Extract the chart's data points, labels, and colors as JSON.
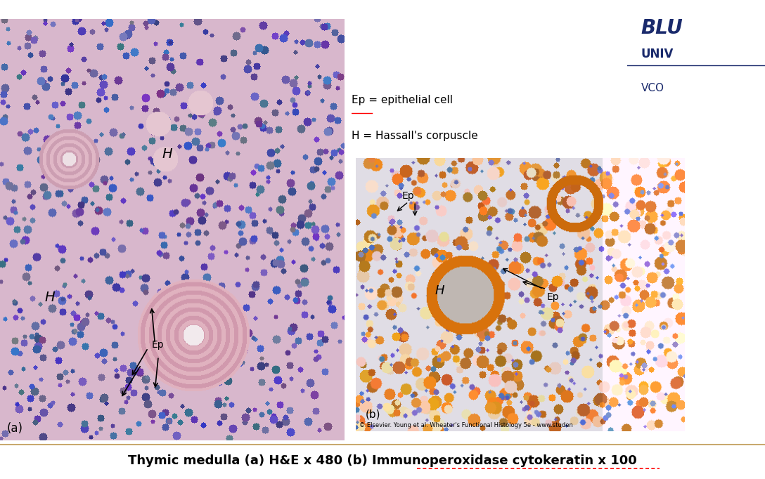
{
  "title": "Thymic medulla (a) H&E x 480 (b) Immunoperoxidase cytokeratin x 100",
  "bg_color": "#ffffff",
  "logo_text_line1": "BLU",
  "logo_text_line2": "UNIV",
  "logo_text_line3": "VCO",
  "logo_color": "#1a2a6c",
  "legend_line1": "Ep = epithelial cell",
  "legend_line2": "H = Hassall's corpuscle",
  "divider_color": "#c8a96e",
  "fig_width": 10.88,
  "fig_height": 6.82
}
